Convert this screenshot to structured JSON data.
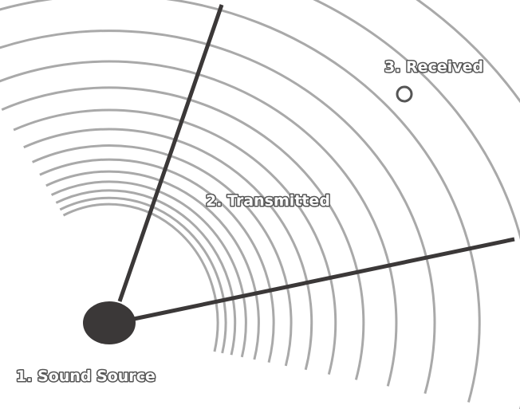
{
  "labels": {
    "source": "1. Sound Source",
    "transmitted": "2. Transmitted",
    "received": "3. Received"
  }
}
